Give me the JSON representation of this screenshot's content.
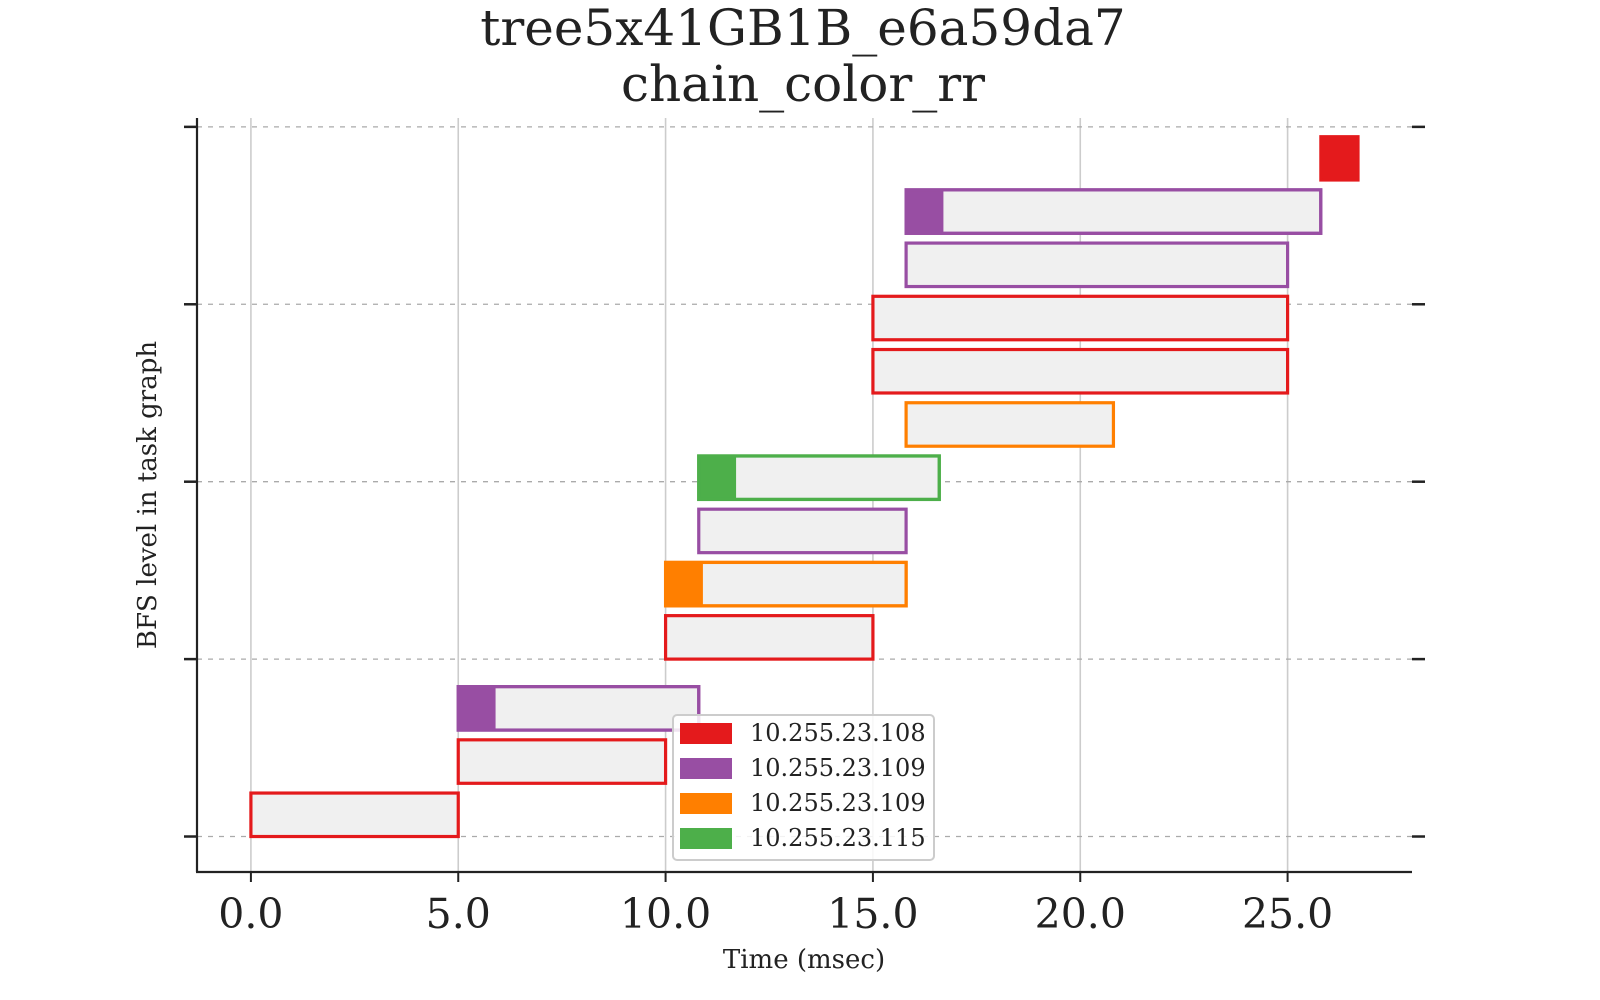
{
  "chart_data": {
    "type": "gantt",
    "title": [
      "tree5x41GB1B_e6a59da7",
      "chain_color_rr"
    ],
    "xlabel": "Time (msec)",
    "ylabel": "BFS level in task graph",
    "xlim": [
      -1.3,
      28.0
    ],
    "ylim": [
      -0.2,
      4.05
    ],
    "xticks": [
      0.0,
      5.0,
      10.0,
      15.0,
      20.0,
      25.0
    ],
    "xtick_labels": [
      "0.0",
      "5.0",
      "10.0",
      "15.0",
      "20.0",
      "25.0"
    ],
    "yticks": [
      0,
      1,
      2,
      3,
      4
    ],
    "grid": {
      "x": "solid",
      "y": "dashed"
    },
    "legend_position": "bottom-center",
    "hosts": [
      {
        "name": "10.255.23.108",
        "color": "#e41a1c"
      },
      {
        "name": "10.255.23.109",
        "color": "#984ea3"
      },
      {
        "name": "10.255.23.109",
        "color": "#ff7f00"
      },
      {
        "name": "10.255.23.115",
        "color": "#4daf4a"
      }
    ],
    "tasks": [
      {
        "start": 0.0,
        "end": 5.0,
        "y": 0.0,
        "host": 0,
        "head": 0
      },
      {
        "start": 5.0,
        "end": 10.0,
        "y": 0.3,
        "host": 0,
        "head": 0
      },
      {
        "start": 5.0,
        "end": 10.8,
        "y": 0.6,
        "host": 1,
        "head": 0.9
      },
      {
        "start": 10.0,
        "end": 15.0,
        "y": 1.0,
        "host": 0,
        "head": 0
      },
      {
        "start": 10.0,
        "end": 15.8,
        "y": 1.3,
        "host": 2,
        "head": 0.9
      },
      {
        "start": 10.8,
        "end": 15.8,
        "y": 1.6,
        "host": 1,
        "head": 0
      },
      {
        "start": 10.8,
        "end": 16.6,
        "y": 1.9,
        "host": 3,
        "head": 0.9
      },
      {
        "start": 15.8,
        "end": 20.8,
        "y": 2.2,
        "host": 2,
        "head": 0
      },
      {
        "start": 15.0,
        "end": 25.0,
        "y": 2.5,
        "host": 0,
        "head": 0
      },
      {
        "start": 15.0,
        "end": 25.0,
        "y": 2.8,
        "host": 0,
        "head": 0
      },
      {
        "start": 15.8,
        "end": 25.0,
        "y": 3.1,
        "host": 1,
        "head": 0
      },
      {
        "start": 15.8,
        "end": 25.8,
        "y": 3.4,
        "host": 1,
        "head": 0.9
      },
      {
        "start": 25.8,
        "end": 26.7,
        "y": 3.7,
        "host": 0,
        "head": 0.9
      }
    ]
  }
}
